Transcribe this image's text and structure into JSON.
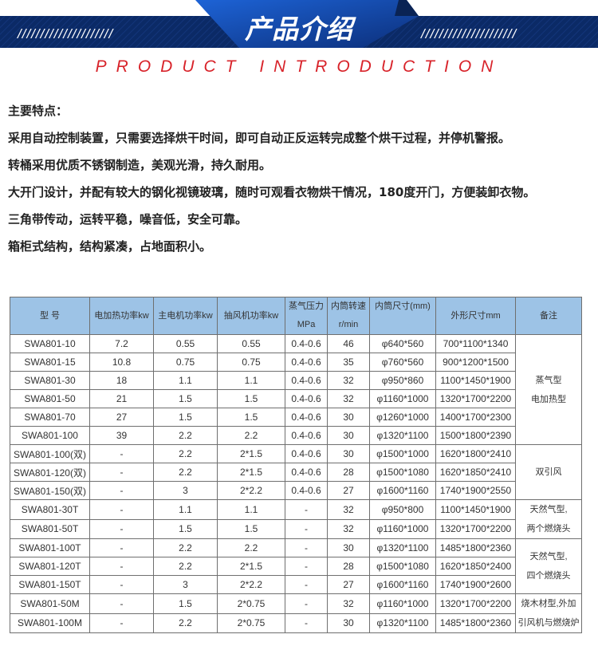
{
  "banner": {
    "title": "产品介绍",
    "left_slashes": "/////////////////////",
    "right_slashes": "/////////////////////"
  },
  "subtitle": "PRODUCT INTRODUCTION",
  "features": {
    "heading": "主要特点：",
    "items": [
      "采用自动控制装置，只需要选择烘干时间，即可自动正反运转完成整个烘干过程，并停机警报。",
      "转桶采用优质不锈钢制造，美观光滑，持久耐用。",
      "大开门设计，并配有较大的钢化视镜玻璃，随时可观看衣物烘干情况，180度开门，方便装卸衣物。",
      "三角带传动，运转平稳，噪音低，安全可靠。",
      "箱柜式结构，结构紧凑，占地面积小。"
    ]
  },
  "colors": {
    "banner_dark": "#0b2a66",
    "banner_accent": "#1a5cc8",
    "subtitle": "#d8232a",
    "table_header": "#9dc3e6"
  },
  "table": {
    "headers": [
      "型 号",
      "电加热功率kw",
      "主电机功率kw",
      "抽风机功率kw",
      "蒸气压力 MPa",
      "内筒转速 r/min",
      "内筒尺寸(mm)",
      "外形尺寸mm",
      "备注"
    ],
    "rows": [
      [
        "SWA801-10",
        "7.2",
        "0.55",
        "0.55",
        "0.4-0.6",
        "46",
        "φ640*560",
        "700*1100*1340"
      ],
      [
        "SWA801-15",
        "10.8",
        "0.75",
        "0.75",
        "0.4-0.6",
        "35",
        "φ760*560",
        "900*1200*1500"
      ],
      [
        "SWA801-30",
        "18",
        "1.1",
        "1.1",
        "0.4-0.6",
        "32",
        "φ950*860",
        "1100*1450*1900"
      ],
      [
        "SWA801-50",
        "21",
        "1.5",
        "1.5",
        "0.4-0.6",
        "32",
        "φ1160*1000",
        "1320*1700*2200"
      ],
      [
        "SWA801-70",
        "27",
        "1.5",
        "1.5",
        "0.4-0.6",
        "30",
        "φ1260*1000",
        "1400*1700*2300"
      ],
      [
        "SWA801-100",
        "39",
        "2.2",
        "2.2",
        "0.4-0.6",
        "30",
        "φ1320*1100",
        "1500*1800*2390"
      ],
      [
        "SWA801-100(双)",
        "-",
        "2.2",
        "2*1.5",
        "0.4-0.6",
        "30",
        "φ1500*1000",
        "1620*1800*2410"
      ],
      [
        "SWA801-120(双)",
        "-",
        "2.2",
        "2*1.5",
        "0.4-0.6",
        "28",
        "φ1500*1080",
        "1620*1850*2410"
      ],
      [
        "SWA801-150(双)",
        "-",
        "3",
        "2*2.2",
        "0.4-0.6",
        "27",
        "φ1600*1160",
        "1740*1900*2550"
      ],
      [
        "SWA801-30T",
        "-",
        "1.1",
        "1.1",
        "-",
        "32",
        "φ950*800",
        "1100*1450*1900"
      ],
      [
        "SWA801-50T",
        "-",
        "1.5",
        "1.5",
        "-",
        "32",
        "φ1160*1000",
        "1320*1700*2200"
      ],
      [
        "SWA801-100T",
        "-",
        "2.2",
        "2.2",
        "-",
        "30",
        "φ1320*1100",
        "1485*1800*2360"
      ],
      [
        "SWA801-120T",
        "-",
        "2.2",
        "2*1.5",
        "-",
        "28",
        "φ1500*1080",
        "1620*1850*2400"
      ],
      [
        "SWA801-150T",
        "-",
        "3",
        "2*2.2",
        "-",
        "27",
        "φ1600*1160",
        "1740*1900*2600"
      ],
      [
        "SWA801-50M",
        "-",
        "1.5",
        "2*0.75",
        "-",
        "32",
        "φ1160*1000",
        "1320*1700*2200"
      ],
      [
        "SWA801-100M",
        "-",
        "2.2",
        "2*0.75",
        "-",
        "30",
        "φ1320*1100",
        "1485*1800*2360"
      ]
    ],
    "remarks": [
      {
        "start": 0,
        "span": 6,
        "lines": [
          "蒸气型",
          "电加热型"
        ]
      },
      {
        "start": 6,
        "span": 3,
        "lines": [
          "双引风"
        ]
      },
      {
        "start": 9,
        "span": 2,
        "lines": [
          "天然气型,",
          "两个燃烧头"
        ]
      },
      {
        "start": 11,
        "span": 3,
        "lines": [
          "天然气型,",
          "四个燃烧头"
        ]
      },
      {
        "start": 14,
        "span": 2,
        "lines": [
          "烧木材型,外加",
          "引风机与燃烧炉"
        ]
      }
    ]
  }
}
